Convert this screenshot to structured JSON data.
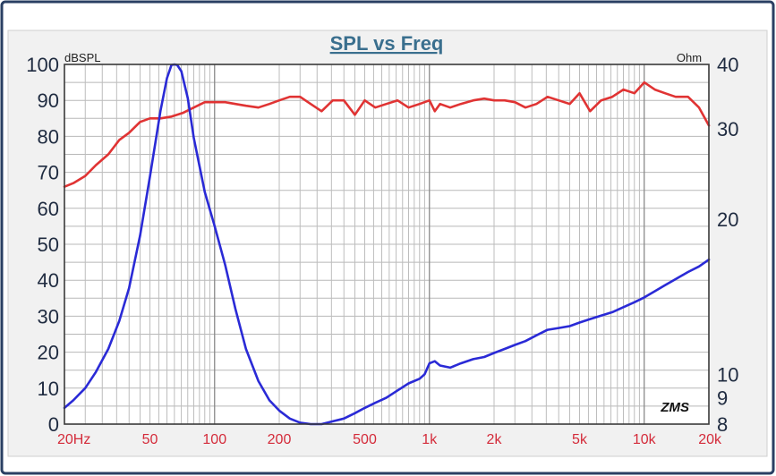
{
  "chart_data": {
    "type": "line",
    "title": "SPL vs Freq",
    "left_unit": "dBSPL",
    "right_unit": "Ohm",
    "watermark": "ZMS",
    "x_scale": "log",
    "xlim": [
      20,
      20000
    ],
    "x_tick_labels": [
      {
        "value": 20,
        "label": "20Hz"
      },
      {
        "value": 50,
        "label": "50"
      },
      {
        "value": 100,
        "label": "100"
      },
      {
        "value": 200,
        "label": "200"
      },
      {
        "value": 500,
        "label": "500"
      },
      {
        "value": 1000,
        "label": "1k"
      },
      {
        "value": 2000,
        "label": "2k"
      },
      {
        "value": 5000,
        "label": "5k"
      },
      {
        "value": 10000,
        "label": "10k"
      },
      {
        "value": 20000,
        "label": "20k"
      }
    ],
    "y_left_lim": [
      0,
      100
    ],
    "y_left_ticks": [
      "0",
      "10",
      "20",
      "30",
      "40",
      "50",
      "60",
      "70",
      "80",
      "90",
      "100"
    ],
    "y_right_scale": "log",
    "y_right_lim": [
      8,
      40
    ],
    "y_right_tick_labels": [
      {
        "value": 8,
        "label": "8"
      },
      {
        "value": 9,
        "label": "9"
      },
      {
        "value": 10,
        "label": "10"
      },
      {
        "value": 20,
        "label": "20"
      },
      {
        "value": 30,
        "label": "30"
      },
      {
        "value": 40,
        "label": "40"
      }
    ],
    "grid": true,
    "colors": {
      "spl": "#e03333",
      "impedance": "#2a2ad6",
      "x_tick_text": "#d42b3a",
      "title_text": "#3a6f8e",
      "border": "#2a3f63"
    },
    "series": [
      {
        "axis": "left",
        "x": [
          20,
          22,
          25,
          28,
          32,
          36,
          40,
          45,
          50,
          56,
          63,
          71,
          80,
          90,
          100,
          112,
          125,
          140,
          160,
          180,
          200,
          224,
          250,
          280,
          315,
          355,
          400,
          450,
          500,
          560,
          630,
          710,
          800,
          900,
          1000,
          1060,
          1120,
          1250,
          1400,
          1600,
          1800,
          2000,
          2240,
          2500,
          2800,
          3150,
          3550,
          4000,
          4500,
          5000,
          5600,
          6300,
          7100,
          8000,
          9000,
          10000,
          11200,
          12500,
          14000,
          16000,
          18000,
          20000
        ],
        "y": [
          66,
          67,
          69,
          72,
          75,
          79,
          81,
          84,
          85,
          85,
          85.5,
          86.5,
          88,
          89.5,
          89.5,
          89.5,
          89,
          88.5,
          88,
          89,
          90,
          91,
          91,
          89,
          87,
          90,
          90,
          86,
          90,
          88,
          89,
          90,
          88,
          89,
          90,
          87,
          89,
          88,
          89,
          90,
          90.5,
          90,
          90,
          89.5,
          88,
          89,
          91,
          90,
          89,
          92,
          87,
          90,
          91,
          93,
          92,
          95,
          93,
          92,
          91,
          91,
          88,
          83
        ]
      },
      {
        "axis": "right",
        "x": [
          20,
          22,
          25,
          28,
          32,
          36,
          40,
          45,
          50,
          56,
          60,
          63,
          65,
          67,
          70,
          75,
          80,
          90,
          100,
          112,
          125,
          140,
          160,
          180,
          200,
          224,
          250,
          280,
          315,
          355,
          400,
          450,
          500,
          560,
          630,
          710,
          800,
          900,
          950,
          1000,
          1060,
          1120,
          1250,
          1400,
          1600,
          1800,
          2000,
          2240,
          2500,
          2800,
          3150,
          3550,
          4000,
          4500,
          5000,
          5600,
          6300,
          7100,
          8000,
          9000,
          10000,
          11200,
          12500,
          14000,
          16000,
          18000,
          20000
        ],
        "y": [
          8.6,
          8.9,
          9.4,
          10.1,
          11.2,
          12.7,
          14.7,
          18.6,
          24.2,
          32.5,
          37.6,
          39.9,
          40.0,
          39.9,
          38.8,
          34.4,
          28.8,
          22.6,
          19.4,
          16.3,
          13.4,
          11.2,
          9.7,
          8.9,
          8.5,
          8.2,
          8.05,
          8.0,
          8.0,
          8.1,
          8.2,
          8.4,
          8.6,
          8.8,
          9.0,
          9.3,
          9.6,
          9.8,
          10.0,
          10.5,
          10.6,
          10.4,
          10.3,
          10.5,
          10.7,
          10.8,
          11.0,
          11.2,
          11.4,
          11.6,
          11.9,
          12.2,
          12.3,
          12.4,
          12.6,
          12.8,
          13.0,
          13.2,
          13.5,
          13.8,
          14.1,
          14.5,
          14.9,
          15.3,
          15.8,
          16.2,
          16.7
        ]
      }
    ]
  }
}
